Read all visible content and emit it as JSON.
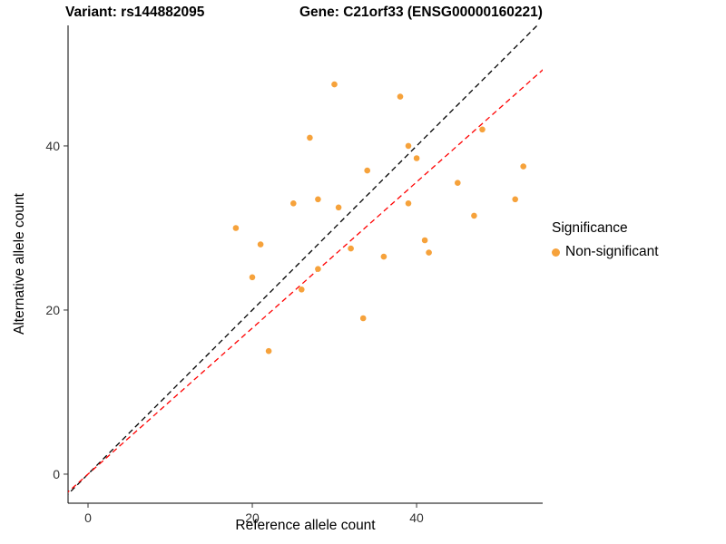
{
  "header": {
    "variant_title": "Variant: rs144882095",
    "gene_title": "Gene: C21orf33 (ENSG00000160221)"
  },
  "chart_data": {
    "type": "scatter",
    "xlabel": "Reference allele count",
    "ylabel": "Alternative allele count",
    "xlim": [
      -2.43,
      55.35
    ],
    "ylim": [
      -3.54,
      54.69
    ],
    "x_ticks": [
      0,
      20,
      40
    ],
    "y_ticks": [
      0,
      20,
      40
    ],
    "grid": false,
    "legend_position": "right",
    "legend_title": "Significance",
    "series": [
      {
        "name": "Non-significant",
        "color": "#F6A23B",
        "points": [
          [
            30,
            47.5
          ],
          [
            38,
            46
          ],
          [
            27,
            41
          ],
          [
            39,
            40
          ],
          [
            40,
            38.5
          ],
          [
            48,
            42
          ],
          [
            53,
            37.5
          ],
          [
            34,
            37
          ],
          [
            45,
            35.5
          ],
          [
            25,
            33
          ],
          [
            28,
            33.5
          ],
          [
            30.5,
            32.5
          ],
          [
            39,
            33
          ],
          [
            52,
            33.5
          ],
          [
            18,
            30
          ],
          [
            47,
            31.5
          ],
          [
            41,
            28.5
          ],
          [
            21,
            28
          ],
          [
            32,
            27.5
          ],
          [
            36,
            26.5
          ],
          [
            41.5,
            27
          ],
          [
            28,
            25
          ],
          [
            20,
            24
          ],
          [
            26,
            22.5
          ],
          [
            33.5,
            19
          ],
          [
            22,
            15
          ]
        ]
      }
    ],
    "lines": [
      {
        "name": "identity",
        "slope": 1,
        "intercept": 0,
        "color": "#000000",
        "style": "dashed"
      },
      {
        "name": "fit",
        "slope": 0.89,
        "intercept": 0,
        "color": "#FF0000",
        "style": "dashed"
      }
    ]
  }
}
